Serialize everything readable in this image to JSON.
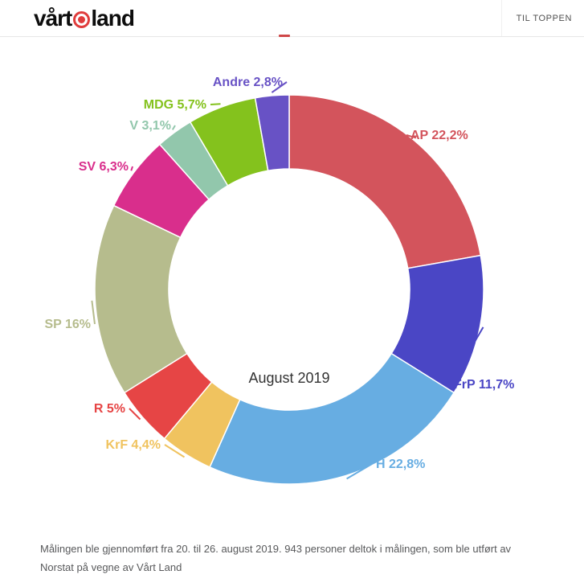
{
  "header": {
    "logo_part1": "vårt",
    "logo_part2": "land",
    "back_to_top": "TIL TOPPEN"
  },
  "chart_data": {
    "type": "pie",
    "subtype": "donut",
    "title": "",
    "center_label": "August 2019",
    "direction": "clockwise",
    "start_angle_deg": 0,
    "legend": false,
    "slices": [
      {
        "name": "AP",
        "value": 22.2,
        "display": "AP 22,2%",
        "color": "#d3545c"
      },
      {
        "name": "FrP",
        "value": 11.7,
        "display": "FrP 11,7%",
        "color": "#4a46c5"
      },
      {
        "name": "H",
        "value": 22.8,
        "display": "H 22,8%",
        "color": "#67ade2"
      },
      {
        "name": "KrF",
        "value": 4.4,
        "display": "KrF 4,4%",
        "color": "#f0c35f"
      },
      {
        "name": "R",
        "value": 5,
        "display": "R 5%",
        "color": "#e64545"
      },
      {
        "name": "SP",
        "value": 16,
        "display": "SP 16%",
        "color": "#b6bc8d"
      },
      {
        "name": "SV",
        "value": 6.3,
        "display": "SV 6,3%",
        "color": "#d92e8c"
      },
      {
        "name": "V",
        "value": 3.1,
        "display": "V 3,1%",
        "color": "#92c7ac"
      },
      {
        "name": "MDG",
        "value": 5.7,
        "display": "MDG 5,7%",
        "color": "#84c21d"
      },
      {
        "name": "Andre",
        "value": 2.8,
        "display": "Andre 2,8%",
        "color": "#6852c5"
      }
    ]
  },
  "footer": {
    "line1": "Målingen ble gjennomført fra 20. til 26. august 2019. 943 personer deltok i målingen, som ble utført av",
    "line2": "Norstat på vegne av Vårt Land"
  }
}
